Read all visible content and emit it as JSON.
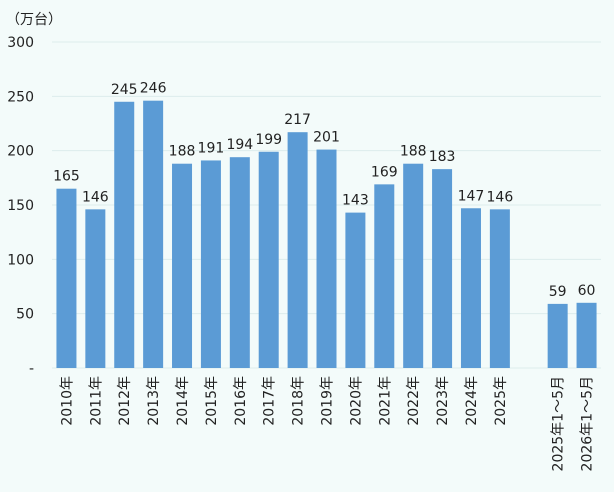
{
  "chart_data": {
    "type": "bar",
    "unit_label": "（万台）",
    "categories": [
      "2010年",
      "2011年",
      "2012年",
      "2013年",
      "2014年",
      "2015年",
      "2016年",
      "2017年",
      "2018年",
      "2019年",
      "2020年",
      "2021年",
      "2022年",
      "2023年",
      "2024年",
      "2025年",
      "",
      "2025年1～5月",
      "2026年1～5月"
    ],
    "values": [
      165,
      146,
      245,
      246,
      188,
      191,
      194,
      199,
      217,
      201,
      143,
      169,
      188,
      183,
      147,
      146,
      null,
      59,
      60
    ],
    "data_labels": [
      "165",
      "146",
      "245",
      "246",
      "188",
      "191",
      "194",
      "199",
      "217",
      "201",
      "143",
      "169",
      "188",
      "183",
      "147",
      "146",
      "",
      "59",
      "60"
    ],
    "yticks": [
      "-",
      "50",
      "100",
      "150",
      "200",
      "250",
      "300"
    ],
    "ylim": [
      0,
      300
    ],
    "ytick_step": 50,
    "grid": true,
    "legend": "none",
    "bar_color": "#5b9bd5",
    "grid_color": "#dcecec"
  }
}
